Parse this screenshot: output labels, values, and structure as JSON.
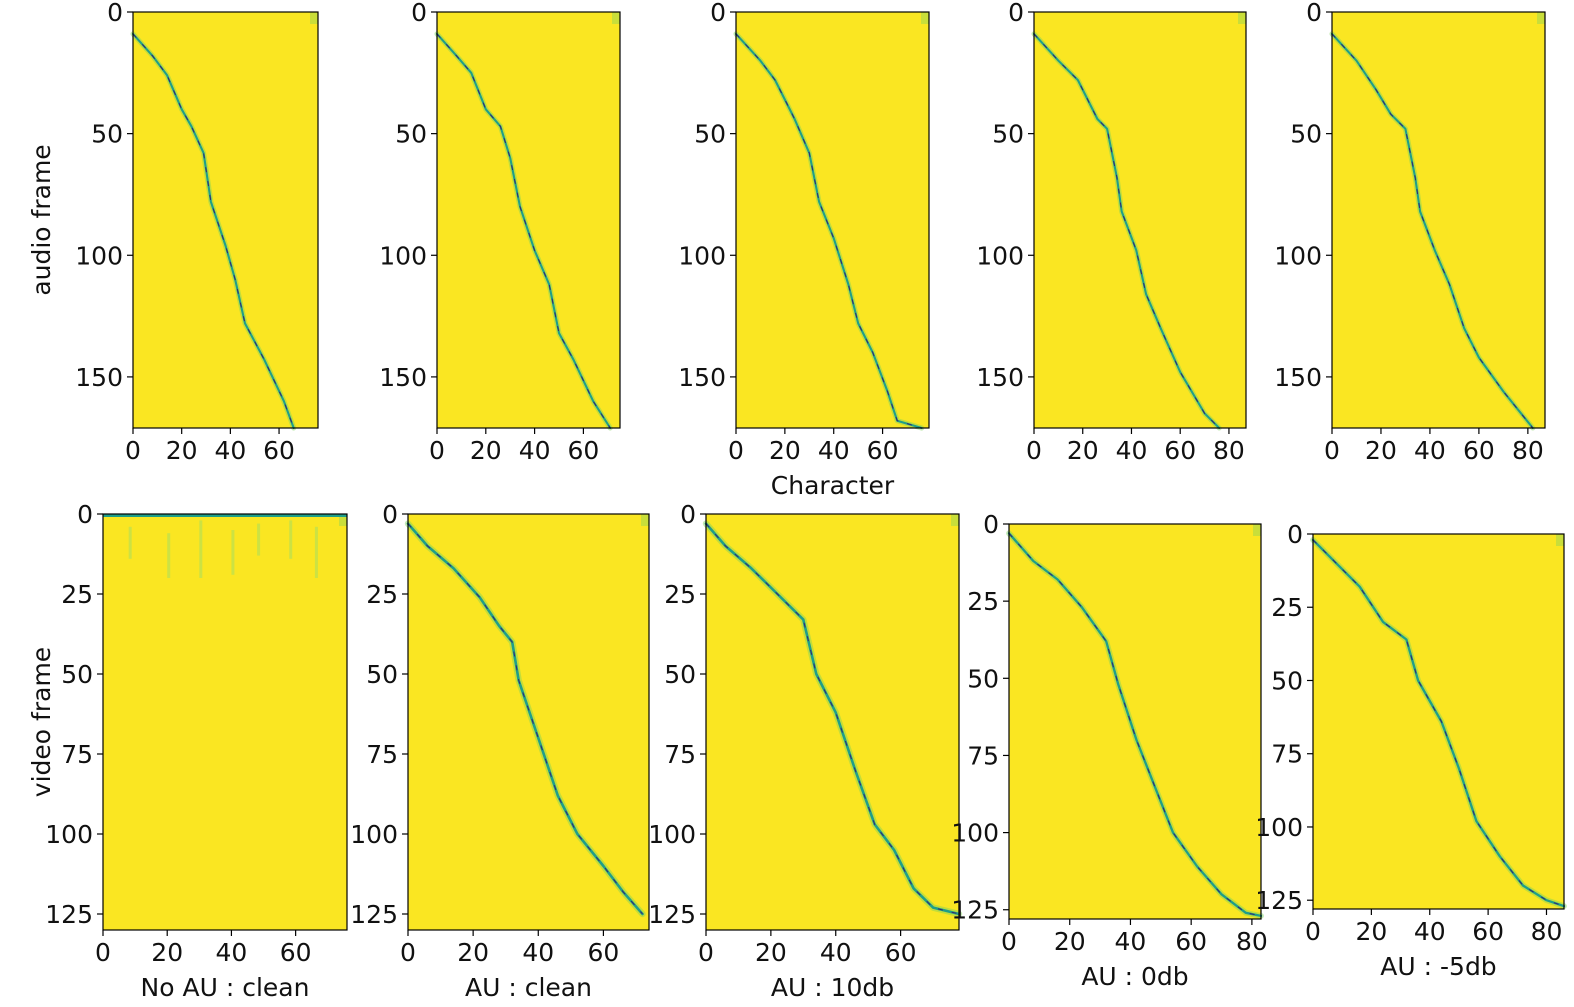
{
  "colors": {
    "background": "#fae622",
    "alignment_path": "#1f9e89",
    "alignment_peak": "#3b1a6b",
    "frame": "#000000"
  },
  "chart_data": [
    {
      "type": "heatmap",
      "id": "top-1",
      "xlabel": "",
      "ylabel": "audio frame",
      "caption": "",
      "xlim": [
        0,
        76
      ],
      "ylim": [
        171,
        0
      ],
      "xticks": [
        0,
        20,
        40,
        60
      ],
      "xtick_labels": [
        "0",
        "20",
        "40",
        "60"
      ],
      "yticks": [
        0,
        50,
        100,
        150
      ],
      "ytick_labels": [
        "0",
        "50",
        "100",
        "150"
      ],
      "alignment_path": [
        [
          0,
          9
        ],
        [
          8,
          18
        ],
        [
          14,
          26
        ],
        [
          20,
          40
        ],
        [
          24,
          47
        ],
        [
          29,
          58
        ],
        [
          32,
          78
        ],
        [
          38,
          96
        ],
        [
          42,
          110
        ],
        [
          46,
          128
        ],
        [
          54,
          143
        ],
        [
          62,
          160
        ],
        [
          66,
          171
        ]
      ],
      "path_width": 1.6
    },
    {
      "type": "heatmap",
      "id": "top-2",
      "xlabel": "",
      "ylabel": "",
      "caption": "",
      "xlim": [
        0,
        75
      ],
      "ylim": [
        171,
        0
      ],
      "xticks": [
        0,
        20,
        40,
        60
      ],
      "xtick_labels": [
        "0",
        "20",
        "40",
        "60"
      ],
      "yticks": [
        0,
        50,
        100,
        150
      ],
      "ytick_labels": [
        "0",
        "50",
        "100",
        "150"
      ],
      "alignment_path": [
        [
          0,
          9
        ],
        [
          8,
          18
        ],
        [
          14,
          25
        ],
        [
          20,
          40
        ],
        [
          26,
          47
        ],
        [
          30,
          60
        ],
        [
          34,
          80
        ],
        [
          40,
          98
        ],
        [
          46,
          112
        ],
        [
          50,
          132
        ],
        [
          56,
          143
        ],
        [
          64,
          160
        ],
        [
          71,
          171
        ]
      ],
      "path_width": 1.6
    },
    {
      "type": "heatmap",
      "id": "top-3",
      "xlabel": "Character",
      "ylabel": "",
      "caption": "",
      "xlim": [
        0,
        79
      ],
      "ylim": [
        171,
        0
      ],
      "xticks": [
        0,
        20,
        40,
        60
      ],
      "xtick_labels": [
        "0",
        "20",
        "40",
        "60"
      ],
      "yticks": [
        0,
        50,
        100,
        150
      ],
      "ytick_labels": [
        "0",
        "50",
        "100",
        "150"
      ],
      "alignment_path": [
        [
          0,
          9
        ],
        [
          10,
          20
        ],
        [
          16,
          28
        ],
        [
          24,
          44
        ],
        [
          30,
          58
        ],
        [
          34,
          78
        ],
        [
          40,
          93
        ],
        [
          46,
          112
        ],
        [
          50,
          128
        ],
        [
          56,
          140
        ],
        [
          62,
          156
        ],
        [
          66,
          168
        ],
        [
          76,
          171
        ]
      ],
      "path_width": 1.6
    },
    {
      "type": "heatmap",
      "id": "top-4",
      "xlabel": "",
      "ylabel": "",
      "caption": "",
      "xlim": [
        0,
        87
      ],
      "ylim": [
        171,
        0
      ],
      "xticks": [
        0,
        20,
        40,
        60,
        80
      ],
      "xtick_labels": [
        "0",
        "20",
        "40",
        "60",
        "80"
      ],
      "yticks": [
        0,
        50,
        100,
        150
      ],
      "ytick_labels": [
        "0",
        "50",
        "100",
        "150"
      ],
      "alignment_path": [
        [
          0,
          9
        ],
        [
          10,
          20
        ],
        [
          18,
          28
        ],
        [
          26,
          44
        ],
        [
          30,
          48
        ],
        [
          34,
          68
        ],
        [
          36,
          82
        ],
        [
          42,
          98
        ],
        [
          46,
          116
        ],
        [
          52,
          130
        ],
        [
          60,
          148
        ],
        [
          70,
          165
        ],
        [
          76,
          171
        ]
      ],
      "path_width": 1.6
    },
    {
      "type": "heatmap",
      "id": "top-5",
      "xlabel": "",
      "ylabel": "",
      "caption": "",
      "xlim": [
        0,
        87
      ],
      "ylim": [
        171,
        0
      ],
      "xticks": [
        0,
        20,
        40,
        60,
        80
      ],
      "xtick_labels": [
        "0",
        "20",
        "40",
        "60",
        "80"
      ],
      "yticks": [
        0,
        50,
        100,
        150
      ],
      "ytick_labels": [
        "0",
        "50",
        "100",
        "150"
      ],
      "alignment_path": [
        [
          0,
          9
        ],
        [
          10,
          20
        ],
        [
          18,
          32
        ],
        [
          24,
          42
        ],
        [
          30,
          48
        ],
        [
          34,
          68
        ],
        [
          36,
          82
        ],
        [
          42,
          98
        ],
        [
          48,
          112
        ],
        [
          54,
          130
        ],
        [
          60,
          142
        ],
        [
          70,
          156
        ],
        [
          82,
          171
        ]
      ],
      "path_width": 1.6
    },
    {
      "type": "heatmap",
      "id": "bottom-1",
      "xlabel": "",
      "ylabel": "video frame",
      "caption": "No AU : clean",
      "xlim": [
        0,
        76
      ],
      "ylim": [
        130,
        0
      ],
      "xticks": [
        0,
        20,
        40,
        60
      ],
      "xtick_labels": [
        "0",
        "20",
        "40",
        "60"
      ],
      "yticks": [
        0,
        25,
        50,
        75,
        100,
        125
      ],
      "ytick_labels": [
        "0",
        "25",
        "50",
        "75",
        "100",
        "125"
      ],
      "alignment_path": [],
      "top_band": true,
      "path_width": 1.2
    },
    {
      "type": "heatmap",
      "id": "bottom-2",
      "xlabel": "",
      "ylabel": "",
      "caption": "AU : clean",
      "xlim": [
        0,
        74
      ],
      "ylim": [
        130,
        0
      ],
      "xticks": [
        0,
        20,
        40,
        60
      ],
      "xtick_labels": [
        "0",
        "20",
        "40",
        "60"
      ],
      "yticks": [
        0,
        25,
        50,
        75,
        100,
        125
      ],
      "ytick_labels": [
        "0",
        "25",
        "50",
        "75",
        "100",
        "125"
      ],
      "alignment_path": [
        [
          0,
          3
        ],
        [
          6,
          10
        ],
        [
          14,
          17
        ],
        [
          22,
          26
        ],
        [
          28,
          35
        ],
        [
          32,
          40
        ],
        [
          34,
          52
        ],
        [
          40,
          70
        ],
        [
          46,
          88
        ],
        [
          52,
          100
        ],
        [
          60,
          110
        ],
        [
          66,
          118
        ],
        [
          72,
          125
        ]
      ],
      "path_width": 2.0
    },
    {
      "type": "heatmap",
      "id": "bottom-3",
      "xlabel": "",
      "ylabel": "",
      "caption": "AU : 10db",
      "xlim": [
        0,
        78
      ],
      "ylim": [
        130,
        0
      ],
      "xticks": [
        0,
        20,
        40,
        60
      ],
      "xtick_labels": [
        "0",
        "20",
        "40",
        "60"
      ],
      "yticks": [
        0,
        25,
        50,
        75,
        100,
        125
      ],
      "ytick_labels": [
        "0",
        "25",
        "50",
        "75",
        "100",
        "125"
      ],
      "alignment_path": [
        [
          0,
          3
        ],
        [
          6,
          10
        ],
        [
          14,
          17
        ],
        [
          22,
          25
        ],
        [
          30,
          33
        ],
        [
          34,
          50
        ],
        [
          40,
          62
        ],
        [
          46,
          80
        ],
        [
          52,
          97
        ],
        [
          58,
          105
        ],
        [
          64,
          117
        ],
        [
          70,
          123
        ],
        [
          78,
          125
        ]
      ],
      "path_width": 2.0
    },
    {
      "type": "heatmap",
      "id": "bottom-4",
      "xlabel": "",
      "ylabel": "",
      "caption": "AU : 0db",
      "xlim": [
        0,
        83
      ],
      "ylim": [
        128,
        0
      ],
      "xticks": [
        0,
        20,
        40,
        60,
        80
      ],
      "xtick_labels": [
        "0",
        "20",
        "40",
        "60",
        "80"
      ],
      "yticks": [
        0,
        25,
        50,
        75,
        100,
        125
      ],
      "ytick_labels": [
        "0",
        "25",
        "50",
        "75",
        "100",
        "125"
      ],
      "alignment_path": [
        [
          0,
          3
        ],
        [
          8,
          12
        ],
        [
          16,
          18
        ],
        [
          24,
          27
        ],
        [
          32,
          38
        ],
        [
          36,
          52
        ],
        [
          42,
          70
        ],
        [
          48,
          85
        ],
        [
          54,
          100
        ],
        [
          62,
          111
        ],
        [
          70,
          120
        ],
        [
          78,
          126
        ],
        [
          83,
          127
        ]
      ],
      "path_width": 1.8
    },
    {
      "type": "heatmap",
      "id": "bottom-5",
      "xlabel": "",
      "ylabel": "",
      "caption": "AU : -5db",
      "xlim": [
        0,
        86
      ],
      "ylim": [
        128,
        0
      ],
      "xticks": [
        0,
        20,
        40,
        60,
        80
      ],
      "xtick_labels": [
        "0",
        "20",
        "40",
        "60",
        "80"
      ],
      "yticks": [
        0,
        25,
        50,
        75,
        100,
        125
      ],
      "ytick_labels": [
        "0",
        "25",
        "50",
        "75",
        "100",
        "125"
      ],
      "alignment_path": [
        [
          0,
          2
        ],
        [
          8,
          10
        ],
        [
          16,
          18
        ],
        [
          24,
          30
        ],
        [
          32,
          36
        ],
        [
          36,
          50
        ],
        [
          44,
          64
        ],
        [
          50,
          80
        ],
        [
          56,
          98
        ],
        [
          64,
          110
        ],
        [
          72,
          120
        ],
        [
          80,
          125
        ],
        [
          86,
          127
        ]
      ],
      "path_width": 1.8
    }
  ]
}
